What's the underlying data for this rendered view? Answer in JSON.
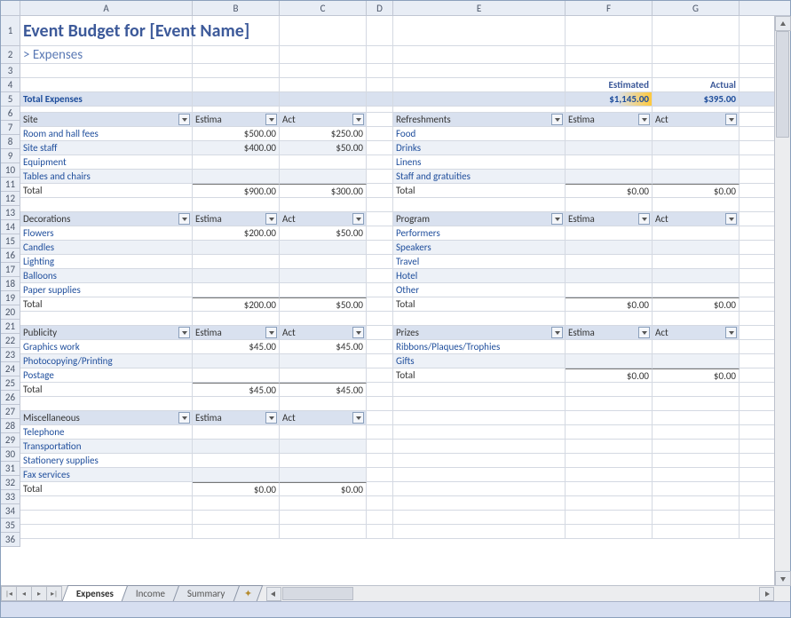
{
  "columns": [
    {
      "label": "",
      "width": 22
    },
    {
      "label": "A",
      "width": 194
    },
    {
      "label": "B",
      "width": 98
    },
    {
      "label": "C",
      "width": 98
    },
    {
      "label": "D",
      "width": 30
    },
    {
      "label": "E",
      "width": 194
    },
    {
      "label": "F",
      "width": 98
    },
    {
      "label": "G",
      "width": 98
    }
  ],
  "title": "Event Budget for [Event Name]",
  "subtitle": "> Expenses",
  "header": {
    "estimated": "Estimated",
    "actual": "Actual"
  },
  "totals": {
    "label": "Total Expenses",
    "estimated": "$1,145.00",
    "actual": "$395.00"
  },
  "rowNumbers": [
    "1",
    "2",
    "3",
    "4",
    "5",
    "6",
    "7",
    "8",
    "9",
    "10",
    "11",
    "12",
    "13",
    "14",
    "15",
    "16",
    "17",
    "18",
    "19",
    "20",
    "21",
    "22",
    "23",
    "24",
    "25",
    "26",
    "27",
    "28",
    "29",
    "30",
    "31",
    "32",
    "33",
    "34",
    "35",
    "36"
  ],
  "hdrEst": "Estima",
  "hdrAct": "Act",
  "totalLabel": "Total",
  "left": [
    {
      "header": "Site",
      "rows": [
        {
          "name": "Room and hall fees",
          "est": "$500.00",
          "act": "$250.00"
        },
        {
          "name": "Site staff",
          "est": "$400.00",
          "act": "$50.00"
        },
        {
          "name": "Equipment",
          "est": "",
          "act": ""
        },
        {
          "name": "Tables and chairs",
          "est": "",
          "act": ""
        }
      ],
      "totalEst": "$900.00",
      "totalAct": "$300.00"
    },
    {
      "header": "Decorations",
      "rows": [
        {
          "name": "Flowers",
          "est": "$200.00",
          "act": "$50.00"
        },
        {
          "name": "Candles",
          "est": "",
          "act": ""
        },
        {
          "name": "Lighting",
          "est": "",
          "act": ""
        },
        {
          "name": "Balloons",
          "est": "",
          "act": ""
        },
        {
          "name": "Paper supplies",
          "est": "",
          "act": ""
        }
      ],
      "totalEst": "$200.00",
      "totalAct": "$50.00"
    },
    {
      "header": "Publicity",
      "rows": [
        {
          "name": "Graphics work",
          "est": "$45.00",
          "act": "$45.00"
        },
        {
          "name": "Photocopying/Printing",
          "est": "",
          "act": ""
        },
        {
          "name": "Postage",
          "est": "",
          "act": ""
        }
      ],
      "totalEst": "$45.00",
      "totalAct": "$45.00"
    },
    {
      "header": "Miscellaneous",
      "rows": [
        {
          "name": "Telephone",
          "est": "",
          "act": ""
        },
        {
          "name": "Transportation",
          "est": "",
          "act": ""
        },
        {
          "name": "Stationery supplies",
          "est": "",
          "act": ""
        },
        {
          "name": "Fax services",
          "est": "",
          "act": ""
        }
      ],
      "totalEst": "$0.00",
      "totalAct": "$0.00"
    }
  ],
  "right": [
    {
      "header": "Refreshments",
      "rows": [
        {
          "name": "Food",
          "est": "",
          "act": ""
        },
        {
          "name": "Drinks",
          "est": "",
          "act": ""
        },
        {
          "name": "Linens",
          "est": "",
          "act": ""
        },
        {
          "name": "Staff and gratuities",
          "est": "",
          "act": ""
        }
      ],
      "totalEst": "$0.00",
      "totalAct": "$0.00"
    },
    {
      "header": "Program",
      "rows": [
        {
          "name": "Performers",
          "est": "",
          "act": ""
        },
        {
          "name": "Speakers",
          "est": "",
          "act": ""
        },
        {
          "name": "Travel",
          "est": "",
          "act": ""
        },
        {
          "name": "Hotel",
          "est": "",
          "act": ""
        },
        {
          "name": "Other",
          "est": "",
          "act": ""
        }
      ],
      "totalEst": "$0.00",
      "totalAct": "$0.00"
    },
    {
      "header": "Prizes",
      "rows": [
        {
          "name": "Ribbons/Plaques/Trophies",
          "est": "",
          "act": ""
        },
        {
          "name": "Gifts",
          "est": "",
          "act": ""
        }
      ],
      "totalEst": "$0.00",
      "totalAct": "$0.00"
    }
  ],
  "tabs": [
    "Expenses",
    "Income",
    "Summary"
  ],
  "activeTab": 0
}
